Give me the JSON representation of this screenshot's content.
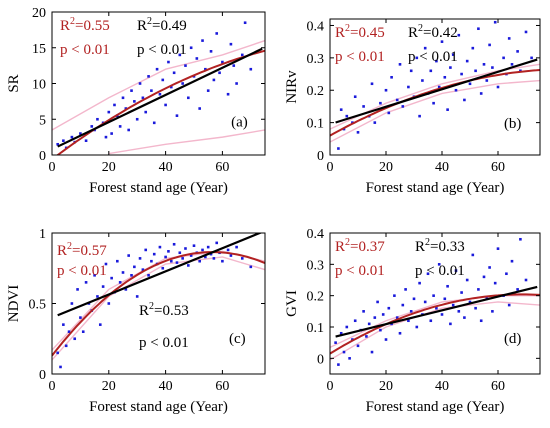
{
  "colors": {
    "points": "#1a1adb",
    "linear": "#000000",
    "poly": "#b22222",
    "band": "#f3b7cc"
  },
  "chart_data": [
    {
      "type": "scatter",
      "panel_label": "(a)",
      "xlabel": "Forest stand age (Year)",
      "ylabel": "SR",
      "xlim": [
        0,
        75
      ],
      "ylim": [
        0,
        20
      ],
      "xticks": [
        "0",
        "20",
        "40",
        "60"
      ],
      "yticks": [
        "0",
        "5",
        "10",
        "15",
        "20"
      ],
      "xtick_values": [
        0,
        20,
        40,
        60
      ],
      "ytick_values": [
        0,
        5,
        10,
        15,
        20
      ],
      "linear_fit": {
        "r2": "R²=0.49",
        "p": "p < 0.01",
        "intercept": 0.8,
        "slope": 0.19
      },
      "poly_fit": {
        "r2": "R²=0.55",
        "p": "p < 0.01",
        "a": -0.6,
        "b": 0.3,
        "c": -0.0013
      },
      "band": {
        "lower": [
          [
            20,
            0.2
          ],
          [
            40,
            1.5
          ],
          [
            60,
            2.5
          ],
          [
            75,
            3.5
          ]
        ],
        "upper": [
          [
            0,
            3.5
          ],
          [
            20,
            8.0
          ],
          [
            40,
            12.0
          ],
          [
            60,
            14.0
          ],
          [
            75,
            16.0
          ]
        ]
      },
      "points": [
        [
          2,
          1.5
        ],
        [
          4,
          2.0
        ],
        [
          5,
          1.0
        ],
        [
          7,
          2.5
        ],
        [
          8,
          1.8
        ],
        [
          10,
          3.0
        ],
        [
          12,
          2.0
        ],
        [
          14,
          4.0
        ],
        [
          15,
          3.5
        ],
        [
          16,
          5.0
        ],
        [
          18,
          4.5
        ],
        [
          19,
          2.5
        ],
        [
          20,
          6.0
        ],
        [
          21,
          3.0
        ],
        [
          22,
          7.0
        ],
        [
          23,
          5.5
        ],
        [
          24,
          4.0
        ],
        [
          25,
          8.0
        ],
        [
          26,
          6.5
        ],
        [
          27,
          3.5
        ],
        [
          28,
          9.0
        ],
        [
          29,
          7.5
        ],
        [
          30,
          5.0
        ],
        [
          31,
          10.0
        ],
        [
          32,
          8.0
        ],
        [
          33,
          6.0
        ],
        [
          34,
          11.0
        ],
        [
          35,
          9.0
        ],
        [
          36,
          4.5
        ],
        [
          37,
          12.0
        ],
        [
          38,
          8.5
        ],
        [
          39,
          10.5
        ],
        [
          40,
          7.0
        ],
        [
          41,
          13.0
        ],
        [
          42,
          9.5
        ],
        [
          43,
          11.5
        ],
        [
          44,
          5.5
        ],
        [
          45,
          14.0
        ],
        [
          46,
          10.0
        ],
        [
          47,
          12.5
        ],
        [
          48,
          8.0
        ],
        [
          49,
          15.0
        ],
        [
          50,
          11.0
        ],
        [
          51,
          13.5
        ],
        [
          52,
          6.5
        ],
        [
          53,
          16.0
        ],
        [
          54,
          12.0
        ],
        [
          55,
          9.0
        ],
        [
          56,
          14.5
        ],
        [
          57,
          10.5
        ],
        [
          58,
          17.0
        ],
        [
          59,
          11.5
        ],
        [
          60,
          13.0
        ],
        [
          62,
          8.5
        ],
        [
          63,
          15.5
        ],
        [
          64,
          12.5
        ],
        [
          65,
          10.0
        ],
        [
          67,
          14.0
        ],
        [
          68,
          18.5
        ],
        [
          70,
          12.0
        ]
      ]
    },
    {
      "type": "scatter",
      "panel_label": "(b)",
      "xlabel": "Forest stand age (Year)",
      "ylabel": "NIRv",
      "xlim": [
        0,
        75
      ],
      "ylim": [
        0,
        0.42
      ],
      "xticks": [
        "0",
        "20",
        "40",
        "60"
      ],
      "yticks": [
        "0",
        "0.1",
        "0.2",
        "0.3",
        "0.4"
      ],
      "xtick_values": [
        0,
        20,
        40,
        60
      ],
      "ytick_values": [
        0,
        0.1,
        0.2,
        0.3,
        0.4
      ],
      "linear_fit": {
        "r2": "R²=0.42",
        "p": "p < 0.01",
        "intercept": 0.095,
        "slope": 0.0027
      },
      "poly_fit": {
        "r2": "R²=0.45",
        "p": "p < 0.01",
        "a": 0.06,
        "b": 0.0048,
        "c": -2.8e-05
      },
      "band": {
        "lower": [
          [
            0,
            0.04
          ],
          [
            20,
            0.13
          ],
          [
            40,
            0.19
          ],
          [
            60,
            0.22
          ],
          [
            75,
            0.23
          ]
        ],
        "upper": [
          [
            0,
            0.08
          ],
          [
            20,
            0.16
          ],
          [
            40,
            0.22
          ],
          [
            60,
            0.26
          ],
          [
            75,
            0.28
          ]
        ]
      },
      "points": [
        [
          3,
          0.02
        ],
        [
          4,
          0.14
        ],
        [
          5,
          0.08
        ],
        [
          6,
          0.12
        ],
        [
          8,
          0.1
        ],
        [
          9,
          0.18
        ],
        [
          10,
          0.07
        ],
        [
          12,
          0.15
        ],
        [
          14,
          0.12
        ],
        [
          15,
          0.22
        ],
        [
          16,
          0.1
        ],
        [
          18,
          0.16
        ],
        [
          20,
          0.2
        ],
        [
          21,
          0.13
        ],
        [
          22,
          0.24
        ],
        [
          24,
          0.17
        ],
        [
          25,
          0.28
        ],
        [
          26,
          0.15
        ],
        [
          28,
          0.21
        ],
        [
          29,
          0.26
        ],
        [
          30,
          0.18
        ],
        [
          31,
          0.3
        ],
        [
          32,
          0.12
        ],
        [
          33,
          0.23
        ],
        [
          34,
          0.33
        ],
        [
          35,
          0.19
        ],
        [
          36,
          0.26
        ],
        [
          37,
          0.16
        ],
        [
          38,
          0.29
        ],
        [
          39,
          0.21
        ],
        [
          40,
          0.35
        ],
        [
          41,
          0.24
        ],
        [
          42,
          0.14
        ],
        [
          43,
          0.27
        ],
        [
          44,
          0.31
        ],
        [
          45,
          0.2
        ],
        [
          46,
          0.37
        ],
        [
          47,
          0.25
        ],
        [
          48,
          0.17
        ],
        [
          49,
          0.29
        ],
        [
          50,
          0.22
        ],
        [
          51,
          0.33
        ],
        [
          52,
          0.26
        ],
        [
          53,
          0.39
        ],
        [
          54,
          0.19
        ],
        [
          55,
          0.28
        ],
        [
          56,
          0.23
        ],
        [
          57,
          0.34
        ],
        [
          58,
          0.27
        ],
        [
          59,
          0.41
        ],
        [
          60,
          0.21
        ],
        [
          62,
          0.3
        ],
        [
          63,
          0.25
        ],
        [
          64,
          0.36
        ],
        [
          65,
          0.28
        ],
        [
          67,
          0.32
        ],
        [
          68,
          0.26
        ],
        [
          70,
          0.38
        ],
        [
          72,
          0.3
        ]
      ]
    },
    {
      "type": "scatter",
      "panel_label": "(c)",
      "xlabel": "Forest stand age (Year)",
      "ylabel": "NDVI",
      "xlim": [
        0,
        75
      ],
      "ylim": [
        0,
        1
      ],
      "xticks": [
        "0",
        "20",
        "40",
        "60"
      ],
      "yticks": [
        "0",
        "0.5",
        "1"
      ],
      "xtick_values": [
        0,
        20,
        40,
        60
      ],
      "ytick_values": [
        0,
        0.5,
        1
      ],
      "linear_fit": {
        "r2": "R²=0.53",
        "p": "p < 0.01",
        "intercept": 0.4,
        "slope": 0.0082
      },
      "poly_fit": {
        "r2": "R²=0.57",
        "p": "p < 0.01",
        "a": 0.13,
        "b": 0.026,
        "c": -0.00023
      },
      "band": {
        "lower": [
          [
            0,
            0.1
          ],
          [
            20,
            0.55
          ],
          [
            40,
            0.78
          ],
          [
            60,
            0.83
          ],
          [
            75,
            0.74
          ]
        ],
        "upper": [
          [
            0,
            0.17
          ],
          [
            20,
            0.6
          ],
          [
            40,
            0.82
          ],
          [
            60,
            0.87
          ],
          [
            75,
            0.8
          ]
        ]
      },
      "points": [
        [
          2,
          0.15
        ],
        [
          3,
          0.05
        ],
        [
          4,
          0.35
        ],
        [
          5,
          0.2
        ],
        [
          6,
          0.3
        ],
        [
          7,
          0.5
        ],
        [
          8,
          0.25
        ],
        [
          9,
          0.6
        ],
        [
          10,
          0.4
        ],
        [
          11,
          0.3
        ],
        [
          12,
          0.65
        ],
        [
          13,
          0.5
        ],
        [
          14,
          0.45
        ],
        [
          15,
          0.7
        ],
        [
          16,
          0.55
        ],
        [
          17,
          0.35
        ],
        [
          18,
          0.62
        ],
        [
          19,
          0.78
        ],
        [
          20,
          0.5
        ],
        [
          21,
          0.68
        ],
        [
          22,
          0.58
        ],
        [
          23,
          0.8
        ],
        [
          24,
          0.65
        ],
        [
          25,
          0.72
        ],
        [
          26,
          0.6
        ],
        [
          27,
          0.84
        ],
        [
          28,
          0.7
        ],
        [
          29,
          0.76
        ],
        [
          30,
          0.55
        ],
        [
          31,
          0.82
        ],
        [
          32,
          0.74
        ],
        [
          33,
          0.88
        ],
        [
          34,
          0.7
        ],
        [
          35,
          0.8
        ],
        [
          36,
          0.85
        ],
        [
          37,
          0.78
        ],
        [
          38,
          0.9
        ],
        [
          39,
          0.75
        ],
        [
          40,
          0.83
        ],
        [
          41,
          0.87
        ],
        [
          42,
          0.8
        ],
        [
          43,
          0.92
        ],
        [
          44,
          0.79
        ],
        [
          45,
          0.86
        ],
        [
          46,
          0.82
        ],
        [
          47,
          0.89
        ],
        [
          48,
          0.77
        ],
        [
          49,
          0.84
        ],
        [
          50,
          0.91
        ],
        [
          51,
          0.86
        ],
        [
          52,
          0.8
        ],
        [
          53,
          0.88
        ],
        [
          54,
          0.83
        ],
        [
          55,
          0.9
        ],
        [
          56,
          0.85
        ],
        [
          57,
          0.82
        ],
        [
          58,
          0.93
        ],
        [
          59,
          0.86
        ],
        [
          60,
          0.8
        ],
        [
          62,
          0.88
        ],
        [
          63,
          0.84
        ],
        [
          65,
          0.9
        ],
        [
          67,
          0.82
        ],
        [
          70,
          0.76
        ]
      ]
    },
    {
      "type": "scatter",
      "panel_label": "(d)",
      "xlabel": "Forest stand age (Year)",
      "ylabel": "GVI",
      "xlim": [
        0,
        75
      ],
      "ylim": [
        -0.05,
        0.4
      ],
      "xticks": [
        "0",
        "20",
        "40",
        "60"
      ],
      "yticks": [
        "0",
        "0.1",
        "0.2",
        "0.3",
        "0.4"
      ],
      "xtick_values": [
        0,
        20,
        40,
        60
      ],
      "ytick_values": [
        0,
        0.1,
        0.2,
        0.3,
        0.4
      ],
      "linear_fit": {
        "r2": "R²=0.33",
        "p": "p < 0.01",
        "intercept": 0.065,
        "slope": 0.0022
      },
      "poly_fit": {
        "r2": "R²=0.37",
        "p": "p < 0.01",
        "a": 0.015,
        "b": 0.0055,
        "c": -4e-05
      },
      "band": {
        "lower": [
          [
            0,
            -0.005
          ],
          [
            20,
            0.1
          ],
          [
            40,
            0.16
          ],
          [
            60,
            0.18
          ],
          [
            75,
            0.17
          ]
        ],
        "upper": [
          [
            0,
            0.035
          ],
          [
            20,
            0.12
          ],
          [
            40,
            0.18
          ],
          [
            60,
            0.2
          ],
          [
            75,
            0.2
          ]
        ]
      },
      "points": [
        [
          2,
          0.05
        ],
        [
          3,
          -0.02
        ],
        [
          4,
          0.08
        ],
        [
          5,
          0.02
        ],
        [
          6,
          0.1
        ],
        [
          7,
          0.0
        ],
        [
          8,
          0.06
        ],
        [
          9,
          0.12
        ],
        [
          10,
          0.04
        ],
        [
          11,
          0.09
        ],
        [
          12,
          0.15
        ],
        [
          13,
          0.07
        ],
        [
          14,
          0.11
        ],
        [
          15,
          0.02
        ],
        [
          16,
          0.13
        ],
        [
          17,
          0.18
        ],
        [
          18,
          0.09
        ],
        [
          19,
          0.14
        ],
        [
          20,
          0.06
        ],
        [
          21,
          0.16
        ],
        [
          22,
          0.11
        ],
        [
          23,
          0.2
        ],
        [
          24,
          0.13
        ],
        [
          25,
          0.08
        ],
        [
          26,
          0.17
        ],
        [
          27,
          0.22
        ],
        [
          28,
          0.12
        ],
        [
          29,
          0.15
        ],
        [
          30,
          0.19
        ],
        [
          31,
          0.1
        ],
        [
          32,
          0.24
        ],
        [
          33,
          0.14
        ],
        [
          34,
          0.18
        ],
        [
          35,
          0.27
        ],
        [
          36,
          0.12
        ],
        [
          37,
          0.2
        ],
        [
          38,
          0.16
        ],
        [
          39,
          0.3
        ],
        [
          40,
          0.14
        ],
        [
          41,
          0.19
        ],
        [
          42,
          0.23
        ],
        [
          43,
          0.11
        ],
        [
          44,
          0.17
        ],
        [
          45,
          0.28
        ],
        [
          46,
          0.15
        ],
        [
          47,
          0.21
        ],
        [
          48,
          0.13
        ],
        [
          49,
          0.25
        ],
        [
          50,
          0.18
        ],
        [
          51,
          0.33
        ],
        [
          52,
          0.16
        ],
        [
          53,
          0.22
        ],
        [
          54,
          0.12
        ],
        [
          55,
          0.26
        ],
        [
          56,
          0.19
        ],
        [
          57,
          0.29
        ],
        [
          58,
          0.15
        ],
        [
          59,
          0.24
        ],
        [
          60,
          0.35
        ],
        [
          62,
          0.2
        ],
        [
          63,
          0.27
        ],
        [
          64,
          0.17
        ],
        [
          65,
          0.31
        ],
        [
          67,
          0.22
        ],
        [
          68,
          0.38
        ],
        [
          70,
          0.25
        ]
      ]
    }
  ]
}
